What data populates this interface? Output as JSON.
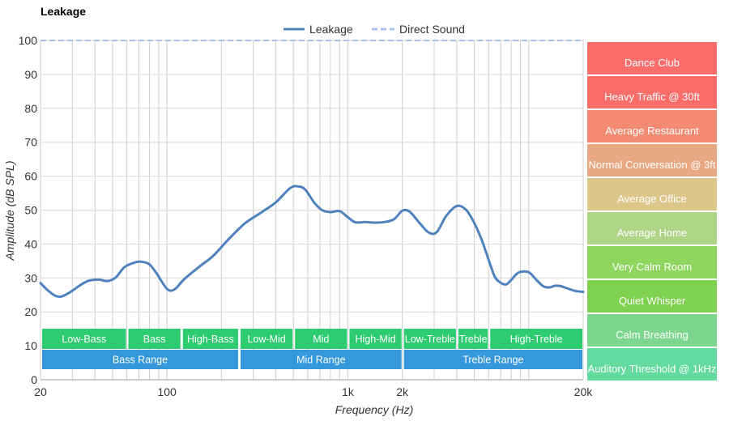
{
  "chart_data": {
    "type": "line",
    "title": "Leakage",
    "xlabel": "Frequency (Hz)",
    "ylabel": "Amplitude (dB SPL)",
    "x_scale": "log",
    "xlim": [
      20,
      20000
    ],
    "ylim": [
      0,
      100
    ],
    "grid": true,
    "legend_position": "top-center",
    "x_ticks": [
      {
        "value": 20,
        "label": "20"
      },
      {
        "value": 100,
        "label": "100"
      },
      {
        "value": 1000,
        "label": "1k"
      },
      {
        "value": 2000,
        "label": "2k"
      },
      {
        "value": 20000,
        "label": "20k"
      }
    ],
    "y_ticks": [
      0,
      10,
      20,
      30,
      40,
      50,
      60,
      70,
      80,
      90,
      100
    ],
    "series": [
      {
        "name": "Leakage",
        "color": "#4f81bd",
        "style": "solid",
        "x": [
          20,
          22,
          24,
          26,
          29,
          33,
          37,
          42,
          47,
          52,
          58,
          65,
          72,
          80,
          88,
          100,
          110,
          125,
          150,
          180,
          220,
          270,
          330,
          400,
          480,
          530,
          580,
          650,
          720,
          800,
          900,
          1000,
          1100,
          1250,
          1400,
          1600,
          1800,
          2000,
          2200,
          2500,
          2800,
          3100,
          3500,
          4000,
          4500,
          5000,
          5500,
          6000,
          6500,
          7000,
          7500,
          8000,
          8500,
          9000,
          10000,
          11000,
          12000,
          13000,
          14000,
          15000,
          16000,
          18000,
          20000
        ],
        "y": [
          28.5,
          26.3,
          24.8,
          24.5,
          25.7,
          27.8,
          29.2,
          29.5,
          29.1,
          30.1,
          33.1,
          34.4,
          34.8,
          34.0,
          31.2,
          26.8,
          26.6,
          29.7,
          33.2,
          36.5,
          41.5,
          46.1,
          49.2,
          52.3,
          56.5,
          57.0,
          56.1,
          52.3,
          50.0,
          49.4,
          49.7,
          47.9,
          46.4,
          46.5,
          46.3,
          46.5,
          47.3,
          49.8,
          49.5,
          46.1,
          43.4,
          43.5,
          48.3,
          51.2,
          50.1,
          46.2,
          41.2,
          35.4,
          30.3,
          28.6,
          28.1,
          29.4,
          31.0,
          31.8,
          31.7,
          29.5,
          27.6,
          27.2,
          27.7,
          27.6,
          27.1,
          26.2,
          25.9
        ]
      },
      {
        "name": "Direct Sound",
        "color": "#a7c2f0",
        "style": "dashed",
        "x": [
          20,
          20000
        ],
        "y": [
          100,
          100
        ]
      }
    ],
    "bands": [
      {
        "label": "Low-Bass",
        "from": 20,
        "to": 60,
        "row": 1,
        "color": "#2ecc71"
      },
      {
        "label": "Bass",
        "from": 60,
        "to": 120,
        "row": 1,
        "color": "#2ecc71"
      },
      {
        "label": "High-Bass",
        "from": 120,
        "to": 250,
        "row": 1,
        "color": "#2ecc71"
      },
      {
        "label": "Low-Mid",
        "from": 250,
        "to": 500,
        "row": 1,
        "color": "#2ecc71"
      },
      {
        "label": "Mid",
        "from": 500,
        "to": 1000,
        "row": 1,
        "color": "#2ecc71"
      },
      {
        "label": "High-Mid",
        "from": 1000,
        "to": 2000,
        "row": 1,
        "color": "#2ecc71"
      },
      {
        "label": "Low-Treble",
        "from": 2000,
        "to": 4000,
        "row": 1,
        "color": "#2ecc71"
      },
      {
        "label": "Treble",
        "from": 4000,
        "to": 6000,
        "row": 1,
        "color": "#2ecc71"
      },
      {
        "label": "High-Treble",
        "from": 6000,
        "to": 20000,
        "row": 1,
        "color": "#2ecc71"
      },
      {
        "label": "Bass Range",
        "from": 20,
        "to": 250,
        "row": 2,
        "color": "#3498db"
      },
      {
        "label": "Mid Range",
        "from": 250,
        "to": 2000,
        "row": 2,
        "color": "#3498db"
      },
      {
        "label": "Treble Range",
        "from": 2000,
        "to": 20000,
        "row": 2,
        "color": "#3498db"
      }
    ],
    "reference_levels": [
      {
        "label": "Dance Club",
        "color": "#fb6d6a"
      },
      {
        "label": "Heavy Traffic @ 30ft",
        "color": "#fa6d69"
      },
      {
        "label": "Average Restaurant",
        "color": "#f28b71"
      },
      {
        "label": "Normal Conversation @ 3ft",
        "color": "#e8a982"
      },
      {
        "label": "Average Office",
        "color": "#dcc689"
      },
      {
        "label": "Average Home",
        "color": "#aed686"
      },
      {
        "label": "Very Calm Room",
        "color": "#8fd65e"
      },
      {
        "label": "Quiet Whisper",
        "color": "#7fd150"
      },
      {
        "label": "Calm Breathing",
        "color": "#7dd68e"
      },
      {
        "label": "Auditory Threshold @ 1kHz",
        "color": "#63dba0"
      }
    ]
  }
}
